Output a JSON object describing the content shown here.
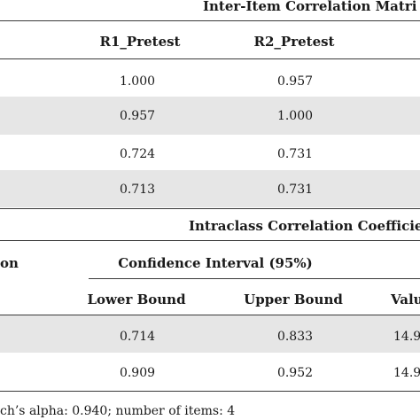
{
  "correlation_section": {
    "title": "Inter-Item Correlation Matri",
    "columns": [
      "R1_Pretest",
      "R2_Pretest"
    ],
    "rows": [
      [
        "1.000",
        "0.957"
      ],
      [
        "0.957",
        "1.000"
      ],
      [
        "0.724",
        "0.731"
      ],
      [
        "0.713",
        "0.731"
      ]
    ]
  },
  "icc_section": {
    "title": "Intraclass Correlation Coefficie",
    "left_header_fragment": "on",
    "ci_header": "Confidence Interval (95%)",
    "subheaders": [
      "Lower Bound",
      "Upper Bound",
      "Valu"
    ],
    "rows": [
      [
        "0.714",
        "0.833",
        "14.9"
      ],
      [
        "0.909",
        "0.952",
        "14.9"
      ]
    ]
  },
  "footnote": "ch’s alpha: 0.940; number of items: 4"
}
